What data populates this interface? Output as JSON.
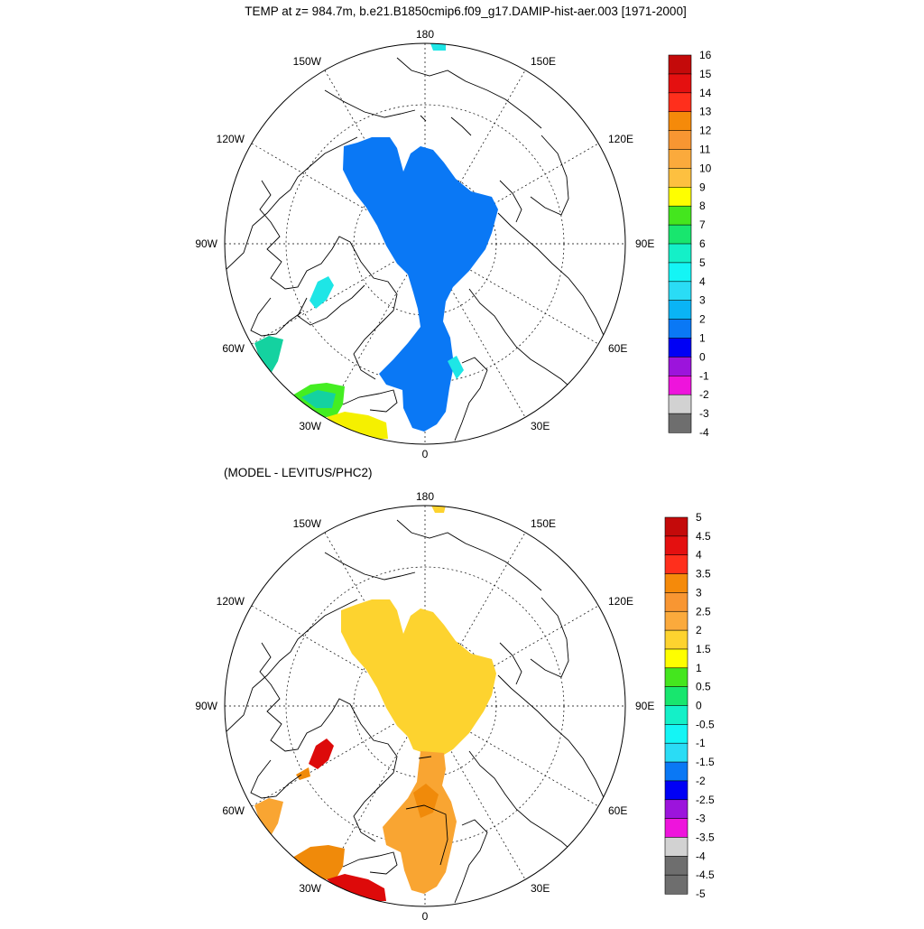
{
  "figure": {
    "title": "TEMP at z= 984.7m, b.e21.B1850cmip6.f09_g17.DAMIP-hist-aer.003 [1971-2000]",
    "subtitle": "(MODEL - LEVITUS/PHC2)"
  },
  "projection": {
    "type": "north-polar-stereographic",
    "longitude_labels": {
      "top": "180",
      "bottom": "0",
      "left": "90W",
      "right": "90E",
      "upper_left_1": "150W",
      "upper_left_2": "120W",
      "upper_right_1": "150E",
      "upper_right_2": "120E",
      "lower_left": "60W",
      "lower_left_2": "30W",
      "lower_right": "60E",
      "lower_right_2": "30E"
    }
  },
  "colors": {
    "ocean_land_outline": "#000000",
    "top_main_fill": "#0a78f5",
    "top_baffin_fill": "#1ee6e6",
    "top_labrador_fill": "#14d2a0",
    "top_irminger_green": "#44ee22",
    "top_irminger_yellow": "#f5f000",
    "bottom_main_fill": "#fdd32f",
    "bottom_atlantic_fill": "#f9a532",
    "bottom_baffin_fill": "#dd0a0a",
    "bottom_orange_fill": "#f08a0a"
  },
  "chart_data": [
    {
      "type": "heatmap",
      "panel": "top",
      "variable": "TEMP",
      "colorbar": {
        "labels": [
          "16",
          "15",
          "14",
          "13",
          "12",
          "11",
          "10",
          "9",
          "8",
          "7",
          "6",
          "5",
          "4",
          "3",
          "2",
          "1",
          "0",
          "-1",
          "-2",
          "-3",
          "-4"
        ],
        "colors": [
          "#c40a0a",
          "#e41010",
          "#ff2f1c",
          "#f58a0a",
          "#f89632",
          "#fbaa3c",
          "#fdc040",
          "#fefe00",
          "#44e61e",
          "#18e66e",
          "#14f0c8",
          "#14f5f5",
          "#2adcf5",
          "#0ab4f5",
          "#0a78f5",
          "#0000f5",
          "#9c14dc",
          "#ee14dc",
          "#d2d2d2",
          "#6e6e6e"
        ]
      }
    },
    {
      "type": "heatmap",
      "panel": "bottom",
      "variable": "MODEL - LEVITUS/PHC2",
      "colorbar": {
        "labels": [
          "5",
          "4.5",
          "4",
          "3.5",
          "3",
          "2.5",
          "2",
          "1.5",
          "1",
          "0.5",
          "0",
          "-0.5",
          "-1",
          "-1.5",
          "-2",
          "-2.5",
          "-3",
          "-3.5",
          "-4",
          "-4.5",
          "-5"
        ],
        "colors": [
          "#c40a0a",
          "#e41010",
          "#ff2f1c",
          "#f58a0a",
          "#f89632",
          "#fbaa3c",
          "#fdd32f",
          "#fefe00",
          "#44e61e",
          "#18e66e",
          "#14f0c8",
          "#14f5f5",
          "#2adcf5",
          "#0a78f5",
          "#0000f5",
          "#9c14dc",
          "#ee14dc",
          "#d2d2d2",
          "#6e6e6e",
          "#6e6e6e"
        ]
      }
    }
  ]
}
